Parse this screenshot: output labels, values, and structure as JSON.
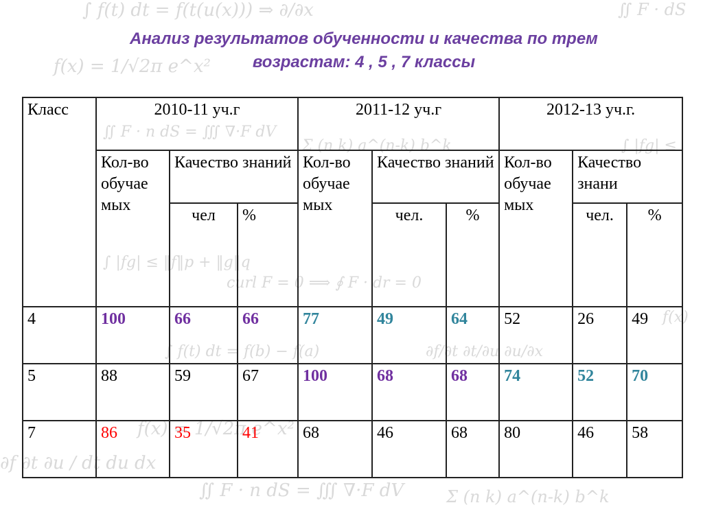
{
  "title": {
    "line1": "Анализ результатов обученности и качества по трем",
    "line2": "возрастам: 4 , 5 , 7 классы"
  },
  "colors": {
    "title": "#6b3fa0",
    "purple": "#7030a0",
    "teal": "#31859c",
    "red": "#ff0000"
  },
  "table": {
    "class_header": "Класс",
    "years": [
      "2010-11 уч.г",
      "2011-12 уч.г",
      "2012-13 уч.г."
    ],
    "sub_headers": {
      "y1": {
        "count": "Кол-во обучае мых",
        "quality": "Качество знаний",
        "people": "чел",
        "percent": "%"
      },
      "y2": {
        "count": "Кол-во обучае мых",
        "quality": "Качество знаний",
        "people": "чел.",
        "percent": "%"
      },
      "y3": {
        "count": "Кол-во обучае мых",
        "quality": "Качество знани",
        "people": "чел.",
        "percent": "%"
      }
    },
    "rows": [
      {
        "class": "4",
        "cells": [
          "100",
          "66",
          "66",
          "77",
          "49",
          "64",
          "52",
          "26",
          "49"
        ]
      },
      {
        "class": "5",
        "cells": [
          "88",
          "59",
          "67",
          "100",
          "68",
          "68",
          "74",
          "52",
          "70"
        ]
      },
      {
        "class": "7",
        "cells": [
          "86",
          "35",
          "41",
          "68",
          "46",
          "68",
          "80",
          "46",
          "58"
        ]
      }
    ]
  }
}
